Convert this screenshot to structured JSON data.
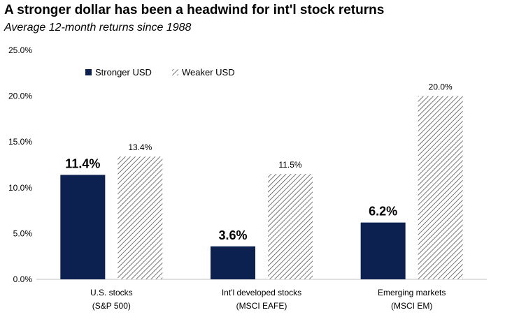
{
  "chart_data": {
    "type": "bar",
    "title": "A stronger dollar has been a headwind for int'l stock returns",
    "subtitle": "Average 12-month returns since 1988",
    "categories": [
      [
        "U.S. stocks",
        "(S&P 500)"
      ],
      [
        "Int'l developed stocks",
        "(MSCI EAFE)"
      ],
      [
        "Emerging markets",
        "(MSCI EM)"
      ]
    ],
    "series": [
      {
        "name": "Stronger USD",
        "values": [
          11.4,
          3.6,
          6.2
        ],
        "labels": [
          "11.4%",
          "3.6%",
          "6.2%"
        ],
        "color": "#0c2150",
        "style": "solid"
      },
      {
        "name": "Weaker USD",
        "values": [
          13.4,
          11.5,
          20.0
        ],
        "labels": [
          "13.4%",
          "11.5%",
          "20.0%"
        ],
        "color": "#555555",
        "style": "hatched"
      }
    ],
    "yticks": [
      "0.0%",
      "5.0%",
      "10.0%",
      "15.0%",
      "20.0%",
      "25.0%"
    ],
    "ylim": [
      0,
      25
    ],
    "xlabel": "",
    "ylabel": "",
    "legend_position": "top-left",
    "grid": false
  }
}
